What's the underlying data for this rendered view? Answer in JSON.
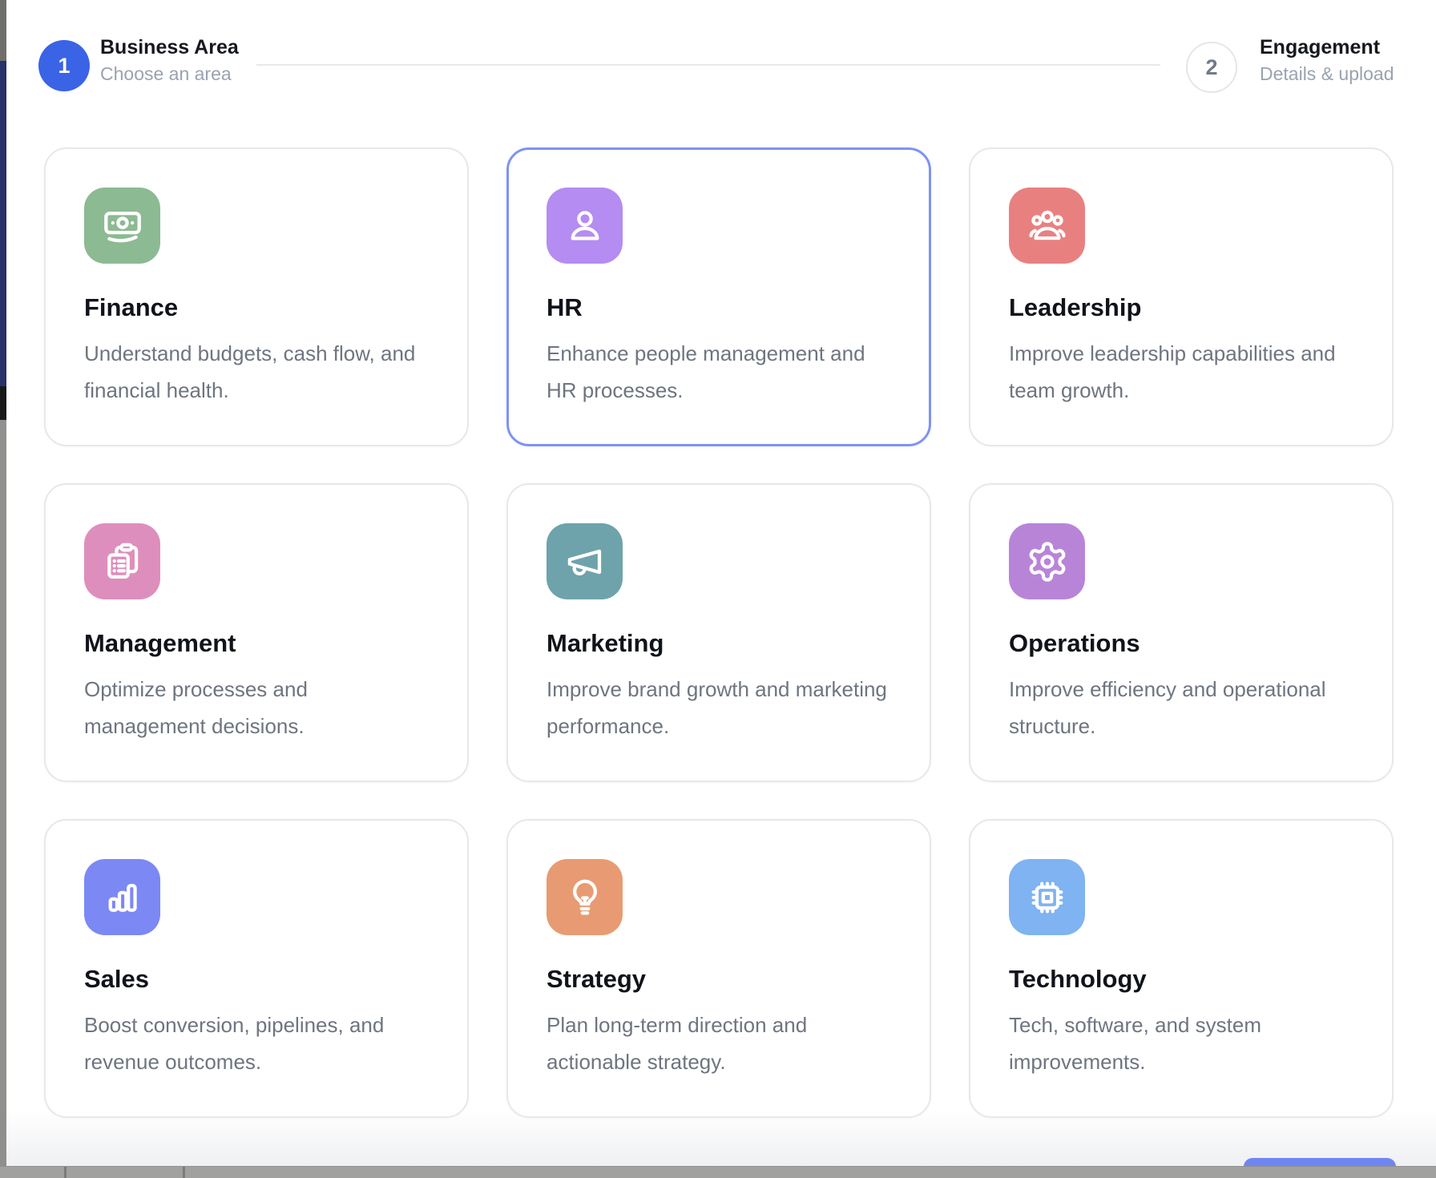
{
  "stepper": {
    "steps": [
      {
        "number": "1",
        "title": "Business Area",
        "subtitle": "Choose an area",
        "state": "active"
      },
      {
        "number": "2",
        "title": "Engagement",
        "subtitle": "Details & upload",
        "state": "inactive"
      }
    ]
  },
  "cards": [
    {
      "title": "Finance",
      "description": "Understand budgets, cash flow, and financial health.",
      "icon": "banknote-icon",
      "color": "#8cba92",
      "selected": false
    },
    {
      "title": "HR",
      "description": "Enhance people management and HR processes.",
      "icon": "person-icon",
      "color": "#b48cf2",
      "selected": true
    },
    {
      "title": "Leadership",
      "description": "Improve leadership capabilities and team growth.",
      "icon": "team-icon",
      "color": "#e98080",
      "selected": false
    },
    {
      "title": "Management",
      "description": "Optimize processes and management decisions.",
      "icon": "clipboard-icon",
      "color": "#de8ebc",
      "selected": false
    },
    {
      "title": "Marketing",
      "description": "Improve brand growth and marketing performance.",
      "icon": "megaphone-icon",
      "color": "#6ea3ab",
      "selected": false
    },
    {
      "title": "Operations",
      "description": "Improve efficiency and operational structure.",
      "icon": "gear-icon",
      "color": "#b884d8",
      "selected": false
    },
    {
      "title": "Sales",
      "description": "Boost conversion, pipelines, and revenue outcomes.",
      "icon": "bar-chart-icon",
      "color": "#7c88f3",
      "selected": false
    },
    {
      "title": "Strategy",
      "description": "Plan long-term direction and actionable strategy.",
      "icon": "lightbulb-icon",
      "color": "#e89b72",
      "selected": false
    },
    {
      "title": "Technology",
      "description": "Tech, software, and system improvements.",
      "icon": "chip-icon",
      "color": "#7fb3f1",
      "selected": false
    }
  ],
  "colors": {
    "accent_blue": "#3a63e6",
    "selected_card_border": "#7e93f4",
    "card_border": "#e7e8ec",
    "title_text": "#10131a",
    "muted_text": "#6e7580",
    "step_inactive_text": "#717a88"
  }
}
